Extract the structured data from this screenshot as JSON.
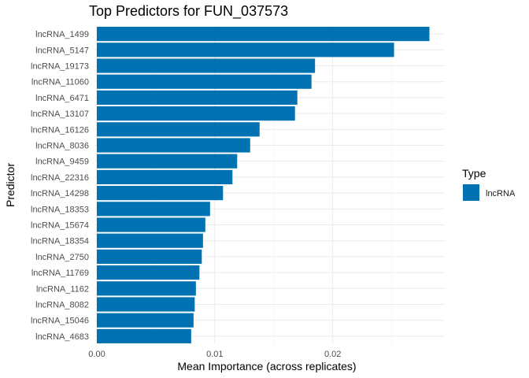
{
  "chart_data": {
    "type": "bar",
    "orientation": "horizontal",
    "title": "Top Predictors for FUN_037573",
    "xlabel": "Mean Importance (across replicates)",
    "ylabel": "Predictor",
    "xlim": [
      -0.0002,
      0.0295
    ],
    "xticks": [
      0.0,
      0.01,
      0.02
    ],
    "xtick_labels": [
      "0.00",
      "0.01",
      "0.02"
    ],
    "grid": true,
    "legend": {
      "title": "Type",
      "position": "right",
      "entries": [
        {
          "label": "lncRNA",
          "color": "#0072B2"
        }
      ]
    },
    "categories": [
      "lncRNA_1499",
      "lncRNA_5147",
      "lncRNA_19173",
      "lncRNA_11060",
      "lncRNA_6471",
      "lncRNA_13107",
      "lncRNA_16126",
      "lncRNA_8036",
      "lncRNA_9459",
      "lncRNA_22316",
      "lncRNA_14298",
      "lncRNA_18353",
      "lncRNA_15674",
      "lncRNA_18354",
      "lncRNA_2750",
      "lncRNA_11769",
      "lncRNA_1162",
      "lncRNA_8082",
      "lncRNA_15046",
      "lncRNA_4683"
    ],
    "series": [
      {
        "name": "lncRNA",
        "color": "#0072B2",
        "values": [
          0.0282,
          0.0252,
          0.0185,
          0.0182,
          0.017,
          0.0168,
          0.0138,
          0.013,
          0.0119,
          0.0115,
          0.0107,
          0.0096,
          0.0092,
          0.009,
          0.0089,
          0.0087,
          0.0084,
          0.0083,
          0.0082,
          0.008
        ]
      }
    ]
  }
}
